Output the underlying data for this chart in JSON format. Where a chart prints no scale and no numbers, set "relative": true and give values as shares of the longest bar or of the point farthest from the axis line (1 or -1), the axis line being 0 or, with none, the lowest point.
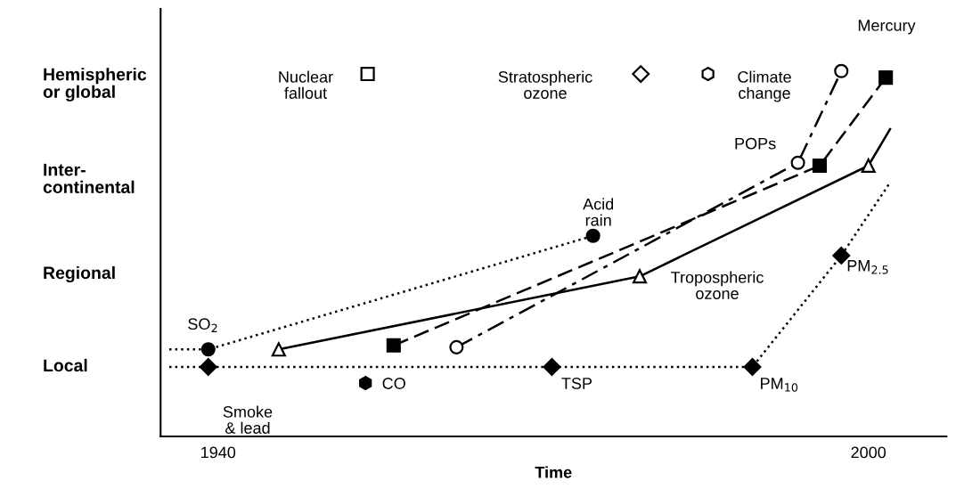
{
  "chart_data": {
    "type": "line",
    "xlabel": "Time",
    "xlim": [
      1934.7,
      2007.2
    ],
    "xticks": [
      1940,
      2000
    ],
    "relative": true,
    "grid": false,
    "series": [
      {
        "line_style": "dotted",
        "marker": "none",
        "color": "#000000",
        "x": [
          1935.5,
          1939.1,
          1974.6
        ],
        "values": [
          0.238,
          0.238,
          0.549
        ]
      },
      {
        "type": "scatter",
        "marker": "circle",
        "color": "#000000",
        "x": [
          1939.1,
          1974.6
        ],
        "values": [
          0.238,
          0.549
        ]
      },
      {
        "line_style": "dotted",
        "marker": "none",
        "color": "#000000",
        "x": [
          1935.5,
          1939.1,
          1970.8,
          1989.3,
          1997.5,
          2002.0
        ],
        "values": [
          0.19,
          0.19,
          0.19,
          0.19,
          0.495,
          0.695
        ]
      },
      {
        "type": "scatter",
        "marker": "diamond",
        "color": "#000000",
        "x": [
          1939.1,
          1970.8,
          1989.3,
          1997.5
        ],
        "values": [
          0.19,
          0.19,
          0.19,
          0.495
        ]
      },
      {
        "line_style": "solid",
        "marker": "none",
        "color": "#000000",
        "x": [
          1945.6,
          1978.9,
          2000.0,
          2002.0
        ],
        "values": [
          0.238,
          0.438,
          0.741,
          0.841
        ]
      },
      {
        "type": "scatter",
        "marker": "triangle-open",
        "color": "#000000",
        "x": [
          1945.6,
          1978.9,
          2000.0
        ],
        "values": [
          0.238,
          0.438,
          0.741
        ]
      },
      {
        "line_style": "dashed",
        "marker": "none",
        "color": "#000000",
        "x": [
          1956.2,
          1995.5,
          2001.6
        ],
        "values": [
          0.249,
          0.741,
          0.982
        ]
      },
      {
        "type": "scatter",
        "marker": "square",
        "color": "#000000",
        "x": [
          1956.2,
          1995.5,
          2001.6
        ],
        "values": [
          0.249,
          0.741,
          0.982
        ]
      },
      {
        "line_style": "dashdot",
        "marker": "none",
        "color": "#000000",
        "x": [
          1962.0,
          1993.5,
          1997.5
        ],
        "values": [
          0.244,
          0.749,
          1.0
        ]
      },
      {
        "type": "scatter",
        "marker": "circle-open",
        "color": "#000000",
        "x": [
          1962.0,
          1993.5,
          1997.5
        ],
        "values": [
          0.244,
          0.749,
          1.0
        ]
      },
      {
        "type": "scatter",
        "marker": "square-open",
        "color": "#000000",
        "x": [
          1953.8
        ],
        "values": [
          0.992
        ]
      },
      {
        "type": "scatter",
        "marker": "diamond-open",
        "color": "#000000",
        "x": [
          1979.0
        ],
        "values": [
          0.992
        ]
      },
      {
        "type": "scatter",
        "color": "#ffffff",
        "x": [
          1985.2
        ],
        "values": [
          0.992
        ]
      },
      {
        "type": "scatter",
        "color": "#000000",
        "x": [
          1953.6
        ],
        "values": [
          0.146
        ]
      }
    ],
    "annotations": [
      {
        "text": "SO$_{2}$",
        "x": 1939.1,
        "y": 0.238
      },
      {
        "text": "CO",
        "x": 1953.6,
        "y": 0.146
      },
      {
        "text": "TSP",
        "x": 1970.8,
        "y": 0.19
      },
      {
        "text": "PM$_{10}$",
        "x": 1989.3,
        "y": 0.19
      },
      {
        "text": "PM$_{2.5}$",
        "x": 1997.5,
        "y": 0.495
      },
      {
        "text": "Acid\nrain",
        "x": 1974.6,
        "y": 0.549
      },
      {
        "text": "POPs",
        "x": 1993.5,
        "y": 0.749
      },
      "Smoke\n& lead",
      "Tropospheric\nozone",
      "Mercury",
      "Nuclear\nfallout",
      "Stratospheric\nozone",
      "Climate\nchange",
      "Local",
      "Regional",
      "Inter-\ncontinental",
      "Hemispheric\nor global"
    ]
  }
}
